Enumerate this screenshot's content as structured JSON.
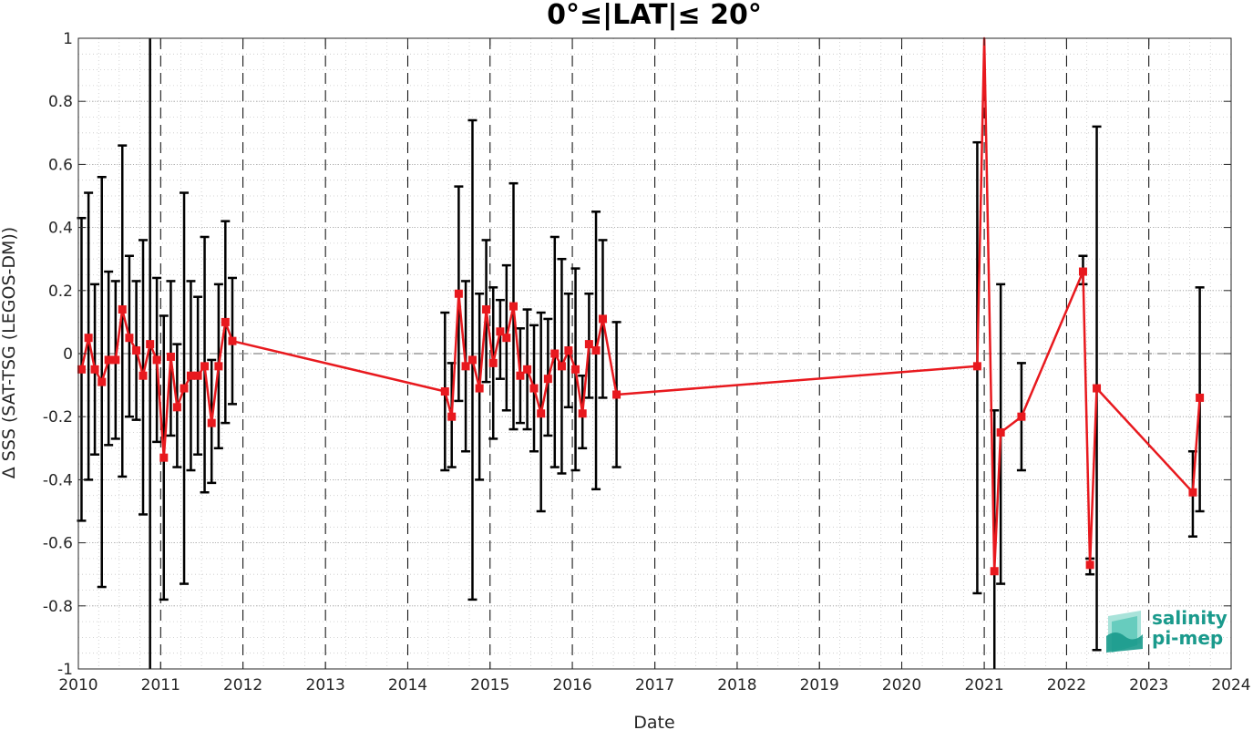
{
  "chart_data": {
    "type": "scatter",
    "title": "0°≤|LAT|≤ 20°",
    "xlabel": "Date",
    "ylabel": "Δ SSS (SAT-TSG (LEGOS-DM))",
    "xlim": [
      "2010-01-01",
      "2024-01-01"
    ],
    "ylim": [
      -1,
      1
    ],
    "x_ticks": [
      "2010",
      "2011",
      "2012",
      "2013",
      "2014",
      "2015",
      "2016",
      "2017",
      "2018",
      "2019",
      "2020",
      "2021",
      "2022",
      "2023",
      "2024"
    ],
    "y_ticks": [
      "-1",
      "-0.8",
      "-0.6",
      "-0.4",
      "-0.2",
      "0",
      "0.2",
      "0.4",
      "0.6",
      "0.8",
      "1"
    ],
    "grid": true,
    "zero_reference_line": 0,
    "year_boundary_lines": "dashed",
    "colors": {
      "series": "#e8191e",
      "error_bars": "#000000",
      "zero_line": "#888888",
      "logo": "#1a9a8c"
    },
    "series": [
      {
        "marker": "square",
        "points": [
          {
            "x": "2010-01-15",
            "y": -0.05,
            "lo": -0.53,
            "hi": 0.43
          },
          {
            "x": "2010-02-15",
            "y": 0.05,
            "lo": -0.4,
            "hi": 0.51
          },
          {
            "x": "2010-03-15",
            "y": -0.05,
            "lo": -0.32,
            "hi": 0.22
          },
          {
            "x": "2010-04-15",
            "y": -0.09,
            "lo": -0.74,
            "hi": 0.56
          },
          {
            "x": "2010-05-15",
            "y": -0.02,
            "lo": -0.29,
            "hi": 0.26
          },
          {
            "x": "2010-06-15",
            "y": -0.02,
            "lo": -0.27,
            "hi": 0.23
          },
          {
            "x": "2010-07-15",
            "y": 0.14,
            "lo": -0.39,
            "hi": 0.66
          },
          {
            "x": "2010-08-15",
            "y": 0.05,
            "lo": -0.2,
            "hi": 0.31
          },
          {
            "x": "2010-09-15",
            "y": 0.01,
            "lo": -0.21,
            "hi": 0.23
          },
          {
            "x": "2010-10-15",
            "y": -0.07,
            "lo": -0.51,
            "hi": 0.36
          },
          {
            "x": "2010-11-15",
            "y": 0.03,
            "lo": -1.0,
            "hi": 1.0
          },
          {
            "x": "2010-12-15",
            "y": -0.02,
            "lo": -0.28,
            "hi": 0.24
          },
          {
            "x": "2011-01-15",
            "y": -0.33,
            "lo": -0.78,
            "hi": 0.12
          },
          {
            "x": "2011-02-15",
            "y": -0.01,
            "lo": -0.26,
            "hi": 0.23
          },
          {
            "x": "2011-03-15",
            "y": -0.17,
            "lo": -0.36,
            "hi": 0.03
          },
          {
            "x": "2011-04-15",
            "y": -0.11,
            "lo": -0.73,
            "hi": 0.51
          },
          {
            "x": "2011-05-15",
            "y": -0.07,
            "lo": -0.37,
            "hi": 0.23
          },
          {
            "x": "2011-06-15",
            "y": -0.07,
            "lo": -0.32,
            "hi": 0.18
          },
          {
            "x": "2011-07-15",
            "y": -0.04,
            "lo": -0.44,
            "hi": 0.37
          },
          {
            "x": "2011-08-15",
            "y": -0.22,
            "lo": -0.41,
            "hi": -0.02
          },
          {
            "x": "2011-09-15",
            "y": -0.04,
            "lo": -0.3,
            "hi": 0.22
          },
          {
            "x": "2011-10-15",
            "y": 0.1,
            "lo": -0.22,
            "hi": 0.42
          },
          {
            "x": "2011-11-15",
            "y": 0.04,
            "lo": -0.16,
            "hi": 0.24
          },
          {
            "x": "2014-06-15",
            "y": -0.12,
            "lo": -0.37,
            "hi": 0.13
          },
          {
            "x": "2014-07-15",
            "y": -0.2,
            "lo": -0.36,
            "hi": -0.03
          },
          {
            "x": "2014-08-15",
            "y": 0.19,
            "lo": -0.15,
            "hi": 0.53
          },
          {
            "x": "2014-09-15",
            "y": -0.04,
            "lo": -0.31,
            "hi": 0.23
          },
          {
            "x": "2014-10-15",
            "y": -0.02,
            "lo": -0.78,
            "hi": 0.74
          },
          {
            "x": "2014-11-15",
            "y": -0.11,
            "lo": -0.4,
            "hi": 0.19
          },
          {
            "x": "2014-12-15",
            "y": 0.14,
            "lo": -0.09,
            "hi": 0.36
          },
          {
            "x": "2015-01-15",
            "y": -0.03,
            "lo": -0.27,
            "hi": 0.21
          },
          {
            "x": "2015-02-15",
            "y": 0.07,
            "lo": -0.08,
            "hi": 0.17
          },
          {
            "x": "2015-03-15",
            "y": 0.05,
            "lo": -0.18,
            "hi": 0.28
          },
          {
            "x": "2015-04-15",
            "y": 0.15,
            "lo": -0.24,
            "hi": 0.54
          },
          {
            "x": "2015-05-15",
            "y": -0.07,
            "lo": -0.22,
            "hi": 0.08
          },
          {
            "x": "2015-06-15",
            "y": -0.05,
            "lo": -0.24,
            "hi": 0.14
          },
          {
            "x": "2015-07-15",
            "y": -0.11,
            "lo": -0.31,
            "hi": 0.09
          },
          {
            "x": "2015-08-15",
            "y": -0.19,
            "lo": -0.5,
            "hi": 0.13
          },
          {
            "x": "2015-09-15",
            "y": -0.08,
            "lo": -0.26,
            "hi": 0.11
          },
          {
            "x": "2015-10-15",
            "y": 0.0,
            "lo": -0.36,
            "hi": 0.37
          },
          {
            "x": "2015-11-15",
            "y": -0.04,
            "lo": -0.38,
            "hi": 0.3
          },
          {
            "x": "2015-12-15",
            "y": 0.01,
            "lo": -0.17,
            "hi": 0.19
          },
          {
            "x": "2016-01-15",
            "y": -0.05,
            "lo": -0.37,
            "hi": 0.27
          },
          {
            "x": "2016-02-15",
            "y": -0.19,
            "lo": -0.3,
            "hi": -0.07
          },
          {
            "x": "2016-03-15",
            "y": 0.03,
            "lo": -0.14,
            "hi": 0.19
          },
          {
            "x": "2016-04-15",
            "y": 0.01,
            "lo": -0.43,
            "hi": 0.45
          },
          {
            "x": "2016-05-15",
            "y": 0.11,
            "lo": -0.14,
            "hi": 0.36
          },
          {
            "x": "2016-07-15",
            "y": -0.13,
            "lo": -0.36,
            "hi": 0.1
          },
          {
            "x": "2020-12-01",
            "y": -0.04,
            "lo": -0.76,
            "hi": 0.67
          },
          {
            "x": "2021-01-01",
            "y": 1.0,
            "lo": null,
            "hi": null
          },
          {
            "x": "2021-02-15",
            "y": -0.69,
            "lo": -1.0,
            "hi": -0.18
          },
          {
            "x": "2021-03-15",
            "y": -0.25,
            "lo": -0.73,
            "hi": 0.22
          },
          {
            "x": "2021-06-15",
            "y": -0.2,
            "lo": -0.37,
            "hi": -0.03
          },
          {
            "x": "2022-03-15",
            "y": 0.26,
            "lo": 0.22,
            "hi": 0.31
          },
          {
            "x": "2022-04-15",
            "y": -0.67,
            "lo": -0.7,
            "hi": -0.65
          },
          {
            "x": "2022-05-15",
            "y": -0.11,
            "lo": -0.94,
            "hi": 0.72
          },
          {
            "x": "2023-07-15",
            "y": -0.44,
            "lo": -0.58,
            "hi": -0.31
          },
          {
            "x": "2023-08-15",
            "y": -0.14,
            "lo": -0.5,
            "hi": 0.21
          }
        ]
      }
    ]
  },
  "logo": {
    "line1": "salinity",
    "line2": "pi-mep"
  }
}
